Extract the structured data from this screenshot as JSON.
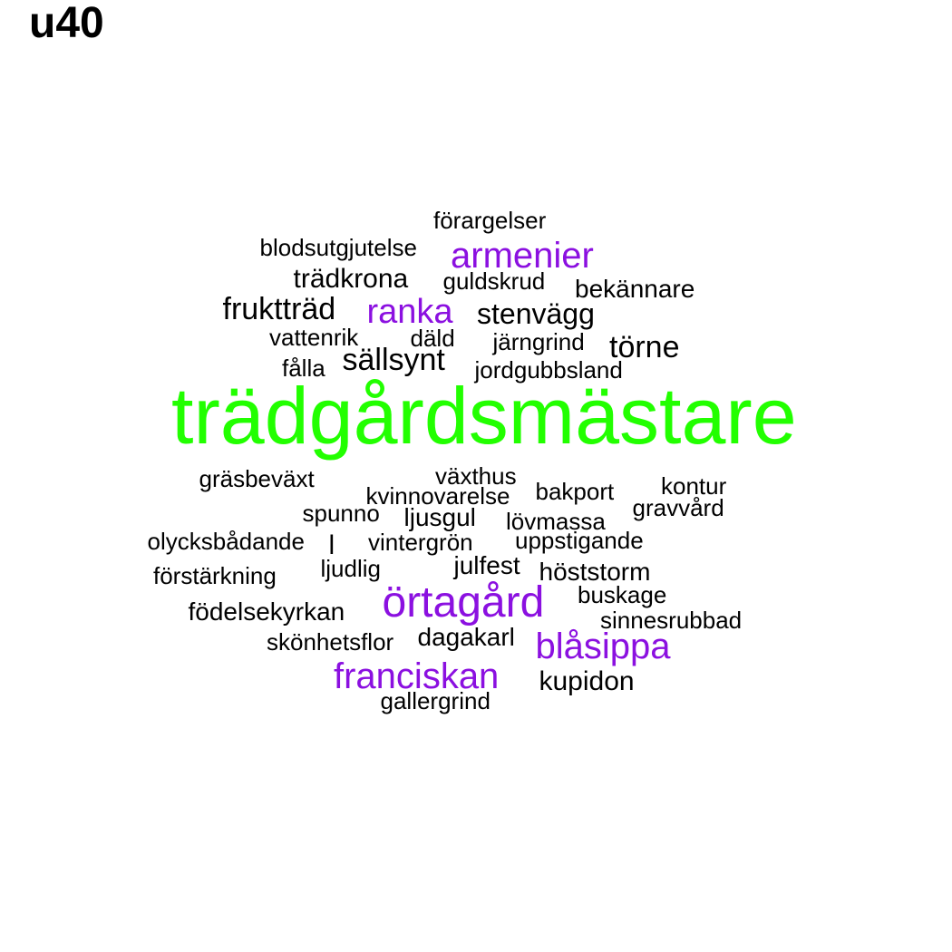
{
  "title": "u40",
  "colors": {
    "primary": "#22ff00",
    "accent": "#8b10e0",
    "default": "#000000"
  },
  "words": [
    {
      "text": "trädgårdsmästare",
      "color": "primary"
    },
    {
      "text": "örtagård",
      "color": "accent"
    },
    {
      "text": "armenier",
      "color": "accent"
    },
    {
      "text": "ranka",
      "color": "accent"
    },
    {
      "text": "blåsippa",
      "color": "accent"
    },
    {
      "text": "franciskan",
      "color": "accent"
    },
    {
      "text": "förargelser",
      "color": "default"
    },
    {
      "text": "blodsutgjutelse",
      "color": "default"
    },
    {
      "text": "trädkrona",
      "color": "default"
    },
    {
      "text": "guldskrud",
      "color": "default"
    },
    {
      "text": "bekännare",
      "color": "default"
    },
    {
      "text": "fruktträd",
      "color": "default"
    },
    {
      "text": "stenvägg",
      "color": "default"
    },
    {
      "text": "vattenrik",
      "color": "default"
    },
    {
      "text": "däld",
      "color": "default"
    },
    {
      "text": "järngrind",
      "color": "default"
    },
    {
      "text": "törne",
      "color": "default"
    },
    {
      "text": "fålla",
      "color": "default"
    },
    {
      "text": "sällsynt",
      "color": "default"
    },
    {
      "text": "jordgubbsland",
      "color": "default"
    },
    {
      "text": "gräsbeväxt",
      "color": "default"
    },
    {
      "text": "växthus",
      "color": "default"
    },
    {
      "text": "kvinnovarelse",
      "color": "default"
    },
    {
      "text": "bakport",
      "color": "default"
    },
    {
      "text": "kontur",
      "color": "default"
    },
    {
      "text": "gravvård",
      "color": "default"
    },
    {
      "text": "spunno",
      "color": "default"
    },
    {
      "text": "ljusgul",
      "color": "default"
    },
    {
      "text": "lövmassa",
      "color": "default"
    },
    {
      "text": "olycksbådande",
      "color": "default"
    },
    {
      "text": "l",
      "color": "default"
    },
    {
      "text": "vintergrön",
      "color": "default"
    },
    {
      "text": "uppstigande",
      "color": "default"
    },
    {
      "text": "förstärkning",
      "color": "default"
    },
    {
      "text": "ljudlig",
      "color": "default"
    },
    {
      "text": "julfest",
      "color": "default"
    },
    {
      "text": "höststorm",
      "color": "default"
    },
    {
      "text": "buskage",
      "color": "default"
    },
    {
      "text": "födelsekyrkan",
      "color": "default"
    },
    {
      "text": "sinnesrubbad",
      "color": "default"
    },
    {
      "text": "skönhetsflor",
      "color": "default"
    },
    {
      "text": "dagakarl",
      "color": "default"
    },
    {
      "text": "kupidon",
      "color": "default"
    },
    {
      "text": "gallergrind",
      "color": "default"
    }
  ]
}
